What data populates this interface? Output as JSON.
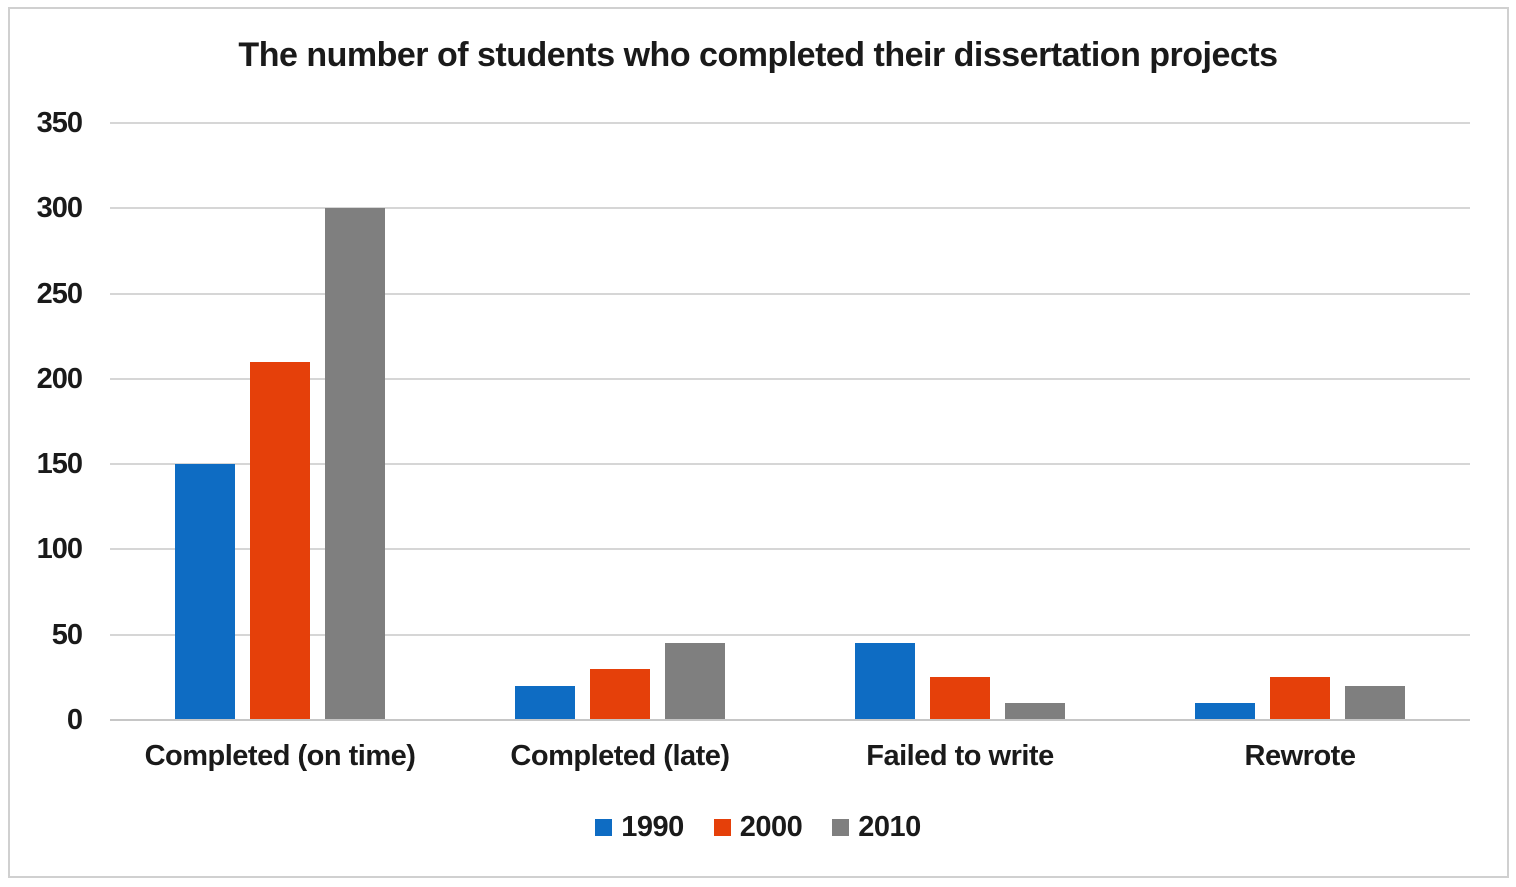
{
  "chart_data": {
    "type": "bar",
    "title": "The number of students who completed their dissertation projects",
    "categories": [
      "Completed (on time)",
      "Completed (late)",
      "Failed to write",
      "Rewrote"
    ],
    "series": [
      {
        "name": "1990",
        "color": "#0E6CC3",
        "values": [
          150,
          20,
          45,
          10
        ]
      },
      {
        "name": "2000",
        "color": "#E5400A",
        "values": [
          210,
          30,
          25,
          25
        ]
      },
      {
        "name": "2010",
        "color": "#7F7F7F",
        "values": [
          300,
          45,
          10,
          20
        ]
      }
    ],
    "xlabel": "",
    "ylabel": "",
    "ylim": [
      0,
      350
    ],
    "yticks": [
      0,
      50,
      100,
      150,
      200,
      250,
      300,
      350
    ],
    "grid": true,
    "legend_position": "bottom"
  },
  "colors": {
    "background": "#FFFFFF",
    "border": "#D0D0D0",
    "gridline": "#D6D6D6",
    "axis_line": "#C6C6C6",
    "text": "#1A1A1A"
  }
}
